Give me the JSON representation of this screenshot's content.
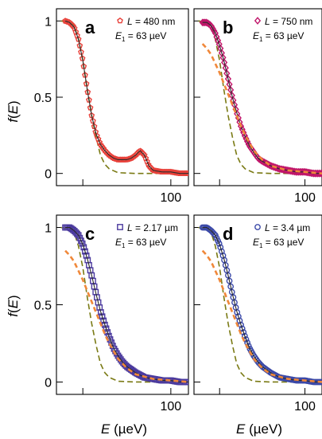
{
  "chart_data": [
    {
      "type": "scatter",
      "panel": "a",
      "label_line1": "L = 480 nm",
      "label_line2": "E1 = 63 µeV",
      "marker": "pentagon",
      "marker_color": "#e8413a",
      "xlim": [
        -30,
        120
      ],
      "ylim": [
        -0.08,
        1.08
      ],
      "xticks": [
        0,
        100
      ],
      "yticks": [
        0,
        0.5,
        1
      ],
      "ytick_labels": [
        "0",
        "0.5",
        "1"
      ],
      "xtick_labels": [
        "",
        "100"
      ],
      "series": [
        {
          "style": "markers",
          "x": [
            -20,
            -15,
            -10,
            -5,
            0,
            5,
            10,
            15,
            20,
            25,
            30,
            35,
            40,
            45,
            50,
            55,
            60,
            65,
            70,
            75,
            80,
            90,
            100,
            110,
            120
          ],
          "y": [
            1.0,
            0.99,
            0.96,
            0.88,
            0.74,
            0.55,
            0.38,
            0.26,
            0.19,
            0.15,
            0.12,
            0.1,
            0.09,
            0.09,
            0.09,
            0.1,
            0.12,
            0.15,
            0.12,
            0.05,
            0.02,
            0.01,
            0.01,
            0.0,
            0.0
          ]
        },
        {
          "style": "solid",
          "x": [
            -20,
            -15,
            -10,
            -5,
            0,
            5,
            10,
            15,
            20,
            25,
            30,
            35,
            40,
            45,
            50,
            55,
            60,
            65,
            70,
            75,
            80,
            90,
            100,
            110,
            120
          ],
          "y": [
            1.0,
            0.99,
            0.96,
            0.88,
            0.74,
            0.55,
            0.38,
            0.26,
            0.19,
            0.15,
            0.12,
            0.1,
            0.09,
            0.09,
            0.09,
            0.1,
            0.12,
            0.15,
            0.12,
            0.05,
            0.02,
            0.01,
            0.01,
            0.0,
            0.0
          ]
        },
        {
          "style": "dash-olive",
          "x": [
            -25,
            -15,
            -10,
            -5,
            0,
            5,
            10,
            15,
            20,
            25,
            30,
            40,
            60,
            120
          ],
          "y": [
            1.0,
            0.99,
            0.97,
            0.88,
            0.74,
            0.55,
            0.38,
            0.24,
            0.12,
            0.06,
            0.03,
            0.005,
            0.0,
            0.0
          ]
        }
      ]
    },
    {
      "type": "scatter",
      "panel": "b",
      "label_line1": "L = 750 nm",
      "label_line2": "E1 = 63 µeV",
      "marker": "diamond",
      "marker_color": "#c0166a",
      "xlim": [
        -30,
        120
      ],
      "ylim": [
        -0.08,
        1.08
      ],
      "xticks": [
        0,
        100
      ],
      "yticks": [
        0,
        0.5,
        1
      ],
      "ytick_labels": [
        "",
        "",
        ""
      ],
      "xtick_labels": [
        "",
        "100"
      ],
      "series": [
        {
          "style": "markers",
          "x": [
            -20,
            -15,
            -10,
            -5,
            0,
            5,
            10,
            15,
            20,
            25,
            30,
            35,
            40,
            45,
            50,
            60,
            70,
            80,
            90,
            100,
            110,
            120
          ],
          "y": [
            0.99,
            0.99,
            0.97,
            0.92,
            0.84,
            0.74,
            0.62,
            0.5,
            0.4,
            0.31,
            0.24,
            0.18,
            0.14,
            0.1,
            0.08,
            0.05,
            0.03,
            0.02,
            0.01,
            0.01,
            0.0,
            0.0
          ]
        },
        {
          "style": "solid",
          "x": [
            -20,
            -15,
            -10,
            -5,
            0,
            5,
            10,
            15,
            20,
            25,
            30,
            35,
            40,
            45,
            50,
            60,
            70,
            80,
            90,
            100,
            110,
            120
          ],
          "y": [
            0.99,
            0.99,
            0.97,
            0.92,
            0.84,
            0.74,
            0.62,
            0.5,
            0.4,
            0.31,
            0.24,
            0.18,
            0.14,
            0.1,
            0.08,
            0.05,
            0.03,
            0.02,
            0.01,
            0.01,
            0.0,
            0.0
          ]
        },
        {
          "style": "dash-orange",
          "x": [
            -20,
            -15,
            -10,
            -5,
            0,
            5,
            10,
            15,
            20,
            25,
            30,
            40,
            50,
            60,
            80,
            100,
            120
          ],
          "y": [
            0.85,
            0.82,
            0.78,
            0.72,
            0.66,
            0.59,
            0.52,
            0.45,
            0.38,
            0.31,
            0.25,
            0.15,
            0.09,
            0.05,
            0.02,
            0.01,
            0.0
          ]
        },
        {
          "style": "dash-olive",
          "x": [
            -25,
            -15,
            -10,
            -5,
            0,
            5,
            10,
            15,
            20,
            25,
            30,
            40,
            60,
            120
          ],
          "y": [
            1.0,
            0.99,
            0.97,
            0.88,
            0.74,
            0.55,
            0.38,
            0.24,
            0.12,
            0.06,
            0.03,
            0.005,
            0.0,
            0.0
          ]
        }
      ]
    },
    {
      "type": "scatter",
      "panel": "c",
      "label_line1": "L = 2.17 µm",
      "label_line2": "E1 = 63 µeV",
      "marker": "square",
      "marker_color": "#4b3a9e",
      "xlim": [
        -30,
        120
      ],
      "ylim": [
        -0.08,
        1.08
      ],
      "xticks": [
        0,
        100
      ],
      "yticks": [
        0,
        0.5,
        1
      ],
      "ytick_labels": [
        "0",
        "0.5",
        "1"
      ],
      "xtick_labels": [
        "",
        "100"
      ],
      "series": [
        {
          "style": "markers",
          "x": [
            -20,
            -15,
            -10,
            -5,
            0,
            5,
            10,
            15,
            20,
            25,
            30,
            35,
            40,
            45,
            50,
            60,
            70,
            80,
            90,
            100,
            110,
            120
          ],
          "y": [
            1.0,
            1.0,
            0.98,
            0.95,
            0.89,
            0.8,
            0.69,
            0.57,
            0.46,
            0.37,
            0.29,
            0.22,
            0.17,
            0.13,
            0.1,
            0.06,
            0.03,
            0.02,
            0.01,
            0.01,
            0.0,
            0.0
          ]
        },
        {
          "style": "solid",
          "x": [
            -20,
            -15,
            -10,
            -5,
            0,
            5,
            10,
            15,
            20,
            25,
            30,
            35,
            40,
            45,
            50,
            60,
            70,
            80,
            90,
            100,
            110,
            120
          ],
          "y": [
            1.0,
            1.0,
            0.98,
            0.95,
            0.89,
            0.8,
            0.69,
            0.57,
            0.46,
            0.37,
            0.29,
            0.22,
            0.17,
            0.13,
            0.1,
            0.06,
            0.03,
            0.02,
            0.01,
            0.01,
            0.0,
            0.0
          ]
        },
        {
          "style": "dash-orange",
          "x": [
            -20,
            -15,
            -10,
            -5,
            0,
            5,
            10,
            15,
            20,
            25,
            30,
            40,
            50,
            60,
            80,
            100,
            120
          ],
          "y": [
            0.85,
            0.82,
            0.78,
            0.72,
            0.66,
            0.59,
            0.52,
            0.45,
            0.38,
            0.31,
            0.25,
            0.15,
            0.09,
            0.05,
            0.02,
            0.01,
            0.0
          ]
        },
        {
          "style": "dash-olive",
          "x": [
            -25,
            -15,
            -10,
            -5,
            0,
            5,
            10,
            15,
            20,
            25,
            30,
            40,
            60,
            120
          ],
          "y": [
            1.0,
            0.99,
            0.97,
            0.88,
            0.74,
            0.55,
            0.38,
            0.24,
            0.12,
            0.06,
            0.03,
            0.005,
            0.0,
            0.0
          ]
        }
      ]
    },
    {
      "type": "scatter",
      "panel": "d",
      "label_line1": "L = 3.4 µm",
      "label_line2": "E1 = 63 µeV",
      "marker": "circle",
      "marker_color": "#3b49a8",
      "xlim": [
        -30,
        120
      ],
      "ylim": [
        -0.08,
        1.08
      ],
      "xticks": [
        0,
        100
      ],
      "yticks": [
        0,
        0.5,
        1
      ],
      "ytick_labels": [
        "",
        "",
        ""
      ],
      "xtick_labels": [
        "",
        "100"
      ],
      "series": [
        {
          "style": "markers",
          "x": [
            -20,
            -15,
            -10,
            -5,
            0,
            5,
            10,
            15,
            20,
            25,
            30,
            35,
            40,
            45,
            50,
            60,
            70,
            80,
            90,
            100,
            110,
            120
          ],
          "y": [
            1.0,
            1.0,
            0.98,
            0.95,
            0.89,
            0.8,
            0.69,
            0.57,
            0.46,
            0.37,
            0.29,
            0.22,
            0.17,
            0.13,
            0.1,
            0.06,
            0.03,
            0.02,
            0.01,
            0.01,
            0.0,
            0.0
          ]
        },
        {
          "style": "solid",
          "x": [
            -20,
            -15,
            -10,
            -5,
            0,
            5,
            10,
            15,
            20,
            25,
            30,
            35,
            40,
            45,
            50,
            60,
            70,
            80,
            90,
            100,
            110,
            120
          ],
          "y": [
            1.0,
            1.0,
            0.98,
            0.95,
            0.89,
            0.8,
            0.69,
            0.57,
            0.46,
            0.37,
            0.29,
            0.22,
            0.17,
            0.13,
            0.1,
            0.06,
            0.03,
            0.02,
            0.01,
            0.01,
            0.0,
            0.0
          ]
        },
        {
          "style": "dash-orange",
          "x": [
            -20,
            -15,
            -10,
            -5,
            0,
            5,
            10,
            15,
            20,
            25,
            30,
            40,
            50,
            60,
            80,
            100,
            120
          ],
          "y": [
            0.85,
            0.82,
            0.78,
            0.72,
            0.66,
            0.59,
            0.52,
            0.45,
            0.38,
            0.31,
            0.25,
            0.15,
            0.09,
            0.05,
            0.02,
            0.01,
            0.0
          ]
        },
        {
          "style": "dash-olive",
          "x": [
            -25,
            -15,
            -10,
            -5,
            0,
            5,
            10,
            15,
            20,
            25,
            30,
            40,
            60,
            120
          ],
          "y": [
            1.0,
            0.99,
            0.97,
            0.88,
            0.74,
            0.55,
            0.38,
            0.24,
            0.12,
            0.06,
            0.03,
            0.005,
            0.0,
            0.0
          ]
        }
      ]
    }
  ],
  "axes": {
    "ylabel": "f(E)",
    "xlabel": "E (µeV)"
  },
  "colors": {
    "fit_line": "#2b2b2b",
    "dash_orange": "#f0883a",
    "dash_olive": "#7a7a14"
  }
}
